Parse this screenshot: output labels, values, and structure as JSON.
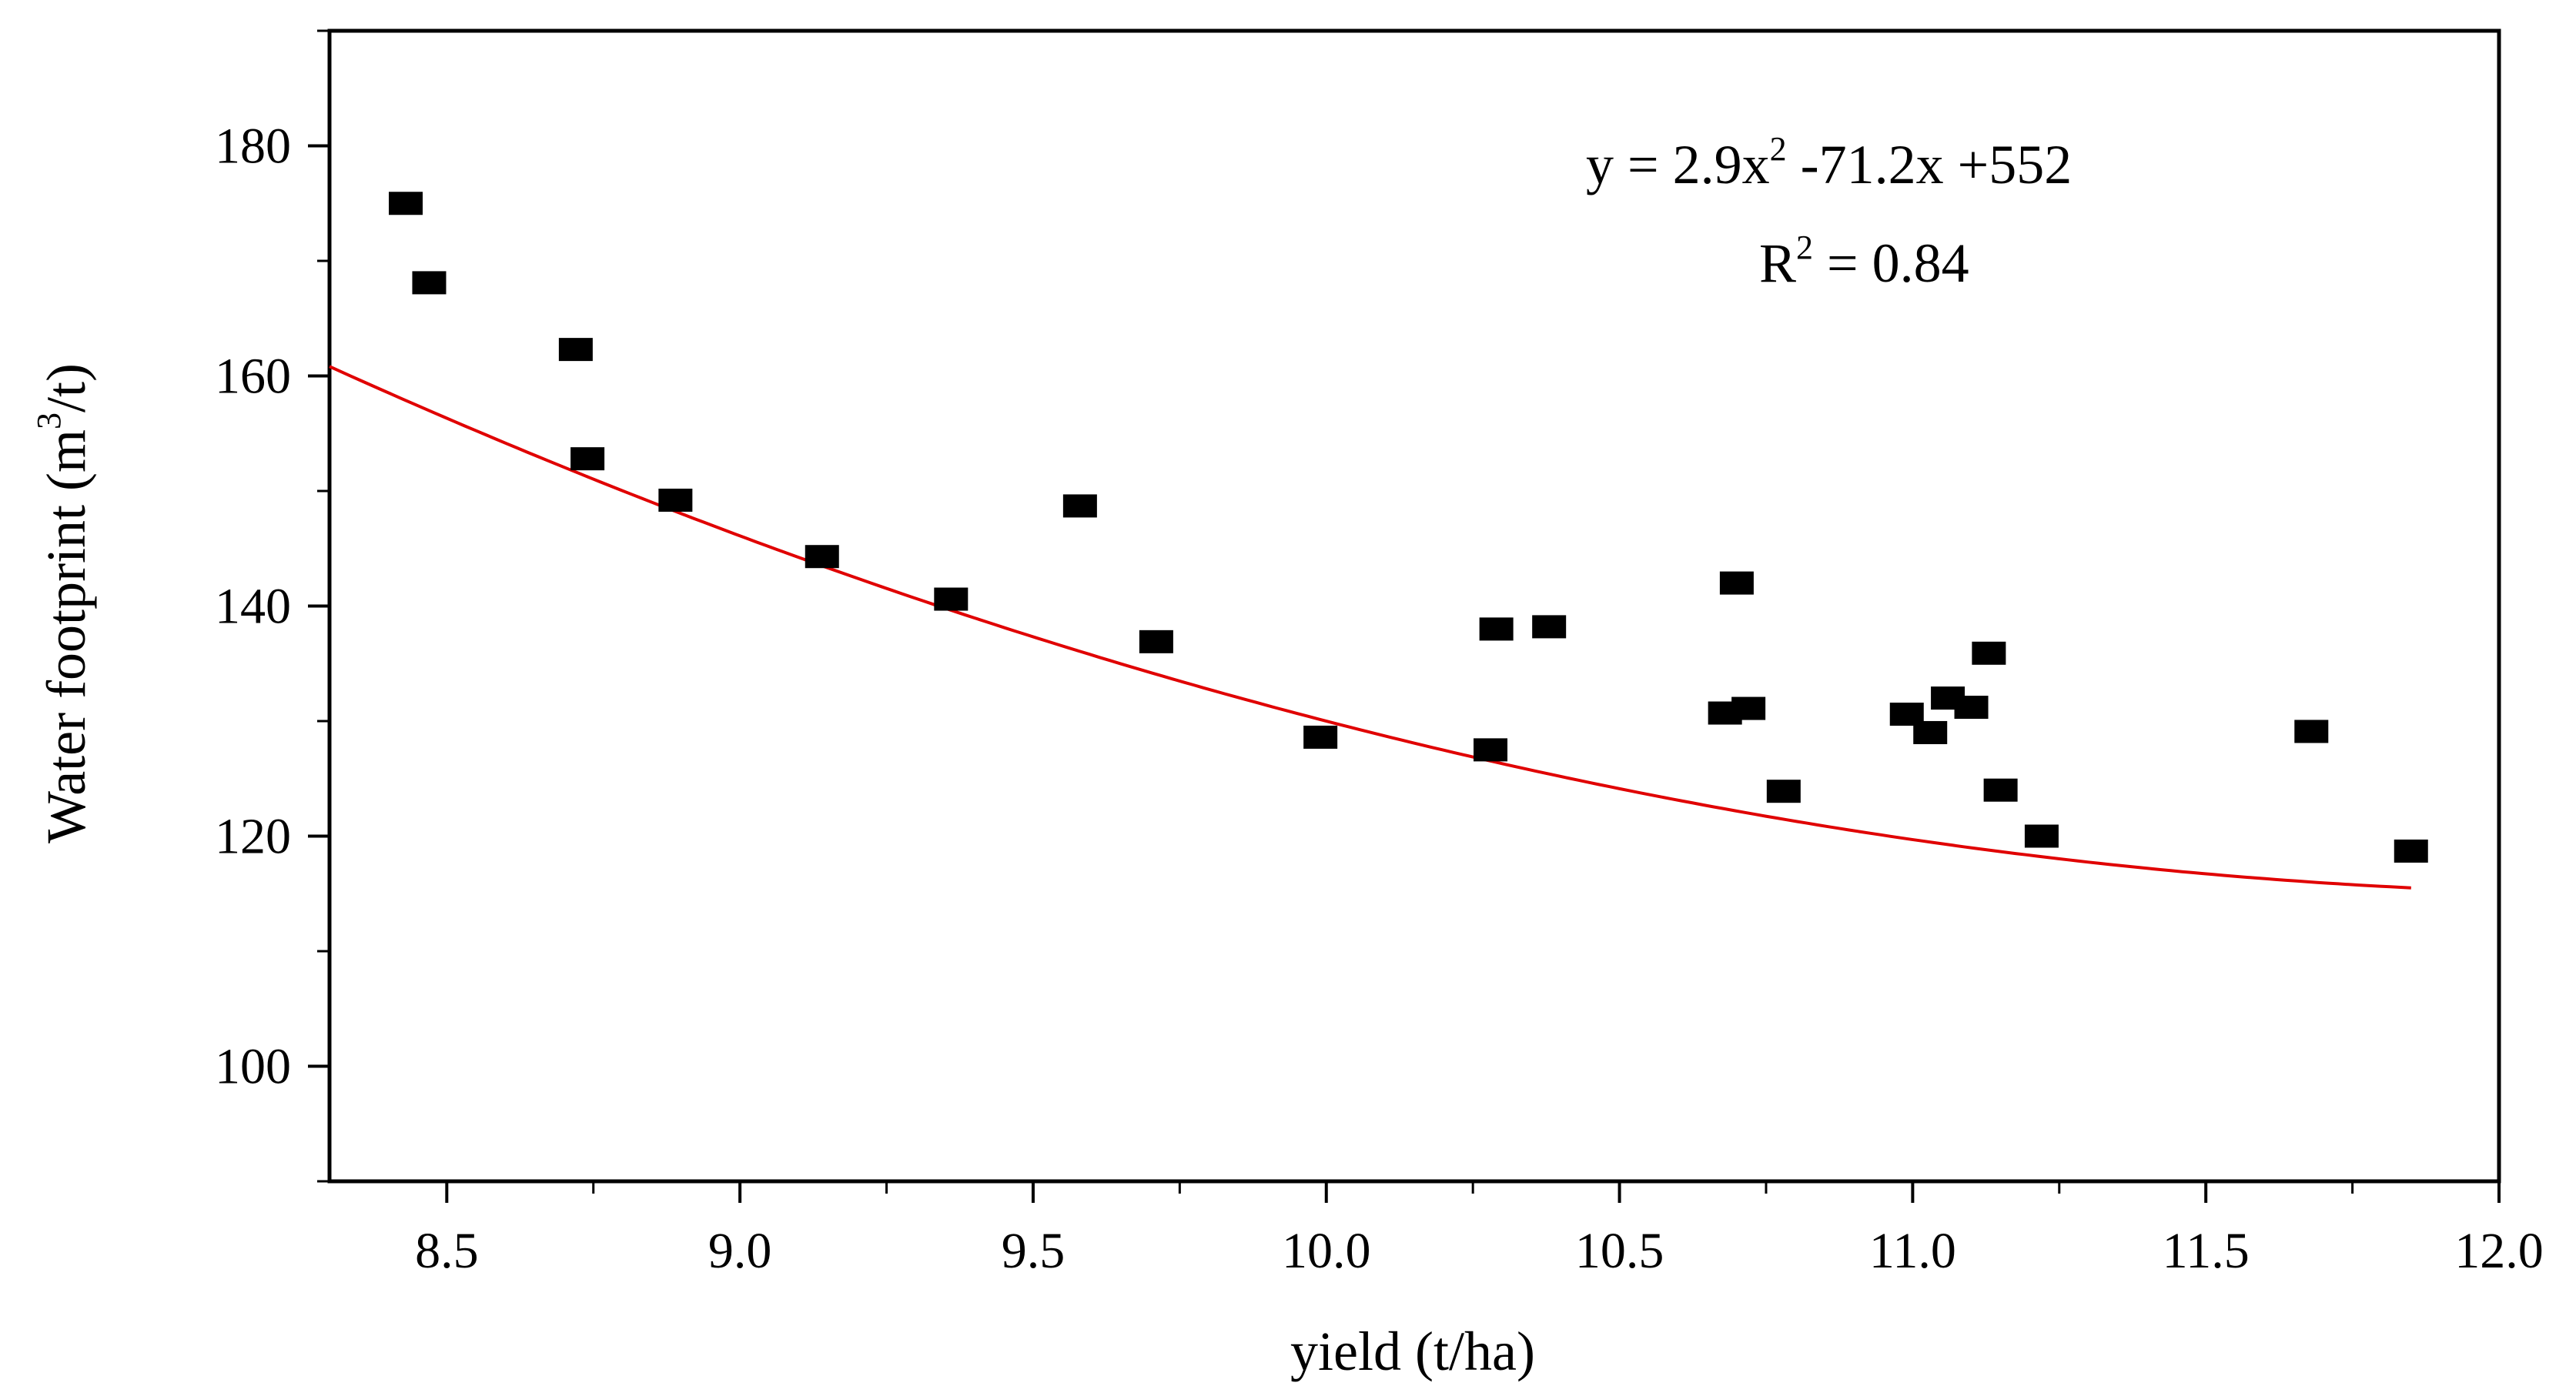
{
  "chart_data": {
    "type": "scatter",
    "title": "",
    "xlabel": "yield (t/ha)",
    "ylabel": {
      "prefix": "Water footprint (m",
      "superscript": "3",
      "suffix": "/t)"
    },
    "xlim": [
      8.3,
      12.0
    ],
    "ylim": [
      90,
      190
    ],
    "x_ticks": [
      {
        "value": 8.5,
        "label": "8.5"
      },
      {
        "value": 9.0,
        "label": "9.0"
      },
      {
        "value": 9.5,
        "label": "9.5"
      },
      {
        "value": 10.0,
        "label": "10.0"
      },
      {
        "value": 10.5,
        "label": "10.5"
      },
      {
        "value": 11.0,
        "label": "11.0"
      },
      {
        "value": 11.5,
        "label": "11.5"
      },
      {
        "value": 12.0,
        "label": "12.0"
      }
    ],
    "y_ticks": [
      {
        "value": 100,
        "label": "100"
      },
      {
        "value": 120,
        "label": "120"
      },
      {
        "value": 140,
        "label": "140"
      },
      {
        "value": 160,
        "label": "160"
      },
      {
        "value": 180,
        "label": "180"
      }
    ],
    "grid": false,
    "legend": "none",
    "series": [
      {
        "marker": "square",
        "color": "#000000",
        "points": [
          {
            "x": 8.43,
            "y": 175.0
          },
          {
            "x": 8.47,
            "y": 168.1
          },
          {
            "x": 8.72,
            "y": 162.3
          },
          {
            "x": 8.74,
            "y": 152.8
          },
          {
            "x": 8.89,
            "y": 149.2
          },
          {
            "x": 9.14,
            "y": 144.3
          },
          {
            "x": 9.36,
            "y": 140.6
          },
          {
            "x": 9.58,
            "y": 148.7
          },
          {
            "x": 9.71,
            "y": 136.9
          },
          {
            "x": 9.99,
            "y": 128.6
          },
          {
            "x": 10.28,
            "y": 127.5
          },
          {
            "x": 10.29,
            "y": 138.0
          },
          {
            "x": 10.38,
            "y": 138.2
          },
          {
            "x": 10.68,
            "y": 130.7
          },
          {
            "x": 10.7,
            "y": 142.0
          },
          {
            "x": 10.72,
            "y": 131.1
          },
          {
            "x": 10.78,
            "y": 123.9
          },
          {
            "x": 10.99,
            "y": 130.6
          },
          {
            "x": 11.03,
            "y": 129.0
          },
          {
            "x": 11.06,
            "y": 132.0
          },
          {
            "x": 11.1,
            "y": 131.2
          },
          {
            "x": 11.13,
            "y": 135.9
          },
          {
            "x": 11.15,
            "y": 124.0
          },
          {
            "x": 11.22,
            "y": 120.0
          },
          {
            "x": 11.68,
            "y": 129.1
          },
          {
            "x": 11.85,
            "y": 118.7
          }
        ]
      }
    ],
    "fit": {
      "type": "quadratic",
      "color": "#e00000",
      "coefficients": {
        "a": 2.9,
        "b": -71.2,
        "c": 552
      },
      "x_range": [
        8.3,
        11.85
      ]
    },
    "annotations": {
      "equation": {
        "y_part": "y = 2.9x",
        "sup": "2",
        "rest": " -71.2x +552"
      },
      "r2": {
        "r": "R",
        "sup": "2",
        "rest": " = 0.84"
      }
    }
  }
}
